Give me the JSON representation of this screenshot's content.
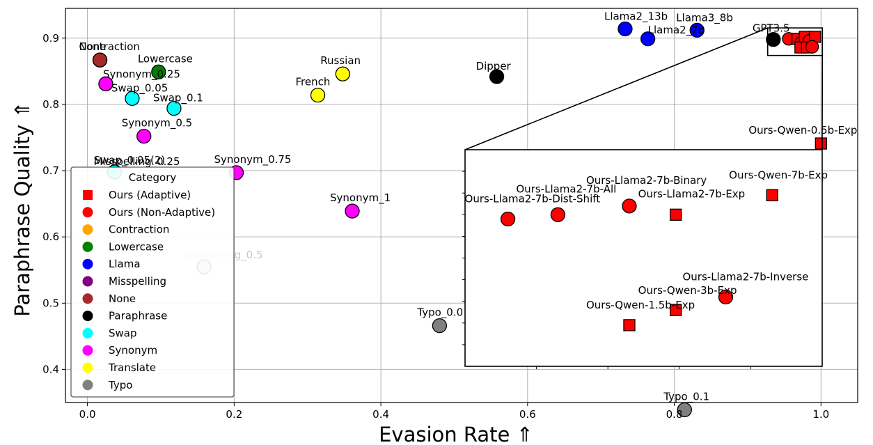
{
  "chart_data": {
    "type": "scatter",
    "title": "",
    "xlabel": "Evasion Rate ⇑",
    "ylabel": "Paraphrase Quality ⇑",
    "xlim": [
      -0.03,
      1.05
    ],
    "ylim": [
      0.35,
      0.945
    ],
    "xticks": [
      "0.0",
      "0.2",
      "0.4",
      "0.6",
      "0.8",
      "1.0"
    ],
    "xtick_values": [
      0.0,
      0.2,
      0.4,
      0.6,
      0.8,
      1.0
    ],
    "yticks": [
      "0.4",
      "0.5",
      "0.6",
      "0.7",
      "0.8",
      "0.9"
    ],
    "ytick_values": [
      0.4,
      0.5,
      0.6,
      0.7,
      0.8,
      0.9
    ],
    "grid": true,
    "legend": {
      "title": "Category",
      "placement": "lower-left",
      "entries": [
        {
          "label": "Ours (Adaptive)",
          "color": "#ff0000",
          "marker": "square"
        },
        {
          "label": "Ours (Non-Adaptive)",
          "color": "#ff0000",
          "marker": "circle"
        },
        {
          "label": "Contraction",
          "color": "#ffa500",
          "marker": "circle"
        },
        {
          "label": "Lowercase",
          "color": "#008000",
          "marker": "circle"
        },
        {
          "label": "Llama",
          "color": "#0000ff",
          "marker": "circle"
        },
        {
          "label": "Misspelling",
          "color": "#800080",
          "marker": "circle"
        },
        {
          "label": "None",
          "color": "#a52a2a",
          "marker": "circle"
        },
        {
          "label": "Paraphrase",
          "color": "#000000",
          "marker": "circle"
        },
        {
          "label": "Swap",
          "color": "#00ffff",
          "marker": "circle"
        },
        {
          "label": "Synonym",
          "color": "#ff00ff",
          "marker": "circle"
        },
        {
          "label": "Translate",
          "color": "#ffff00",
          "marker": "circle"
        },
        {
          "label": "Typo",
          "color": "#808080",
          "marker": "circle"
        }
      ]
    },
    "points": [
      {
        "label": "None",
        "x": 0.017,
        "y": 0.867,
        "color": "#a52a2a",
        "marker": "circle"
      },
      {
        "label": "Contraction",
        "x": 0.017,
        "y": 0.867,
        "color": "#a52a2a",
        "marker": "circle"
      },
      {
        "label": "Lowercase",
        "x": 0.097,
        "y": 0.849,
        "color": "#008000",
        "marker": "circle"
      },
      {
        "label": "Synonym_0.25",
        "x": 0.025,
        "y": 0.831,
        "color": "#ff00ff",
        "marker": "circle"
      },
      {
        "label": "Swap_0.05",
        "x": 0.061,
        "y": 0.809,
        "color": "#00ffff",
        "marker": "circle"
      },
      {
        "label": "Swap_0.1",
        "x": 0.118,
        "y": 0.794,
        "color": "#00ffff",
        "marker": "circle"
      },
      {
        "label": "Synonym_0.5",
        "x": 0.077,
        "y": 0.752,
        "color": "#ff00ff",
        "marker": "circle"
      },
      {
        "label": "Swap_0.05(2)",
        "x": 0.037,
        "y": 0.698,
        "color": "#00ffff",
        "marker": "circle"
      },
      {
        "label": "Misspelling_0.25",
        "x": 0.037,
        "y": 0.698,
        "color": "#00ffff",
        "marker": "circle"
      },
      {
        "label": "Synonym_0.75",
        "x": 0.203,
        "y": 0.697,
        "color": "#ff00ff",
        "marker": "circle"
      },
      {
        "label": "Misspelling_0.5",
        "x": 0.159,
        "y": 0.555,
        "color": "#e0c8e0",
        "marker": "circle"
      },
      {
        "label": "Russian",
        "x": 0.348,
        "y": 0.846,
        "color": "#ffff00",
        "marker": "circle"
      },
      {
        "label": "French",
        "x": 0.314,
        "y": 0.814,
        "color": "#ffff00",
        "marker": "circle"
      },
      {
        "label": "Synonym_1",
        "x": 0.361,
        "y": 0.639,
        "color": "#ff00ff",
        "marker": "circle"
      },
      {
        "label": "Typo_0.0",
        "x": 0.48,
        "y": 0.466,
        "color": "#808080",
        "marker": "circle"
      },
      {
        "label": "Dipper",
        "x": 0.558,
        "y": 0.842,
        "color": "#000000",
        "marker": "circle"
      },
      {
        "label": "Llama2_13b",
        "x": 0.733,
        "y": 0.914,
        "color": "#0000ff",
        "marker": "circle"
      },
      {
        "label": "Llama2_7b",
        "x": 0.764,
        "y": 0.899,
        "color": "#0000ff",
        "marker": "circle"
      },
      {
        "label": "Llama3_8b",
        "x": 0.831,
        "y": 0.912,
        "color": "#0000ff",
        "marker": "circle"
      },
      {
        "label": "GPT3.5",
        "x": 0.935,
        "y": 0.898,
        "color": "#000000",
        "marker": "circle"
      },
      {
        "label": "Typo_0.1",
        "x": 0.814,
        "y": 0.339,
        "color": "#808080",
        "marker": "circle"
      },
      {
        "label": "Ours-Qwen-0.5b-Exp",
        "x": 1.0,
        "y": 0.741,
        "color": "#ff0000",
        "marker": "square"
      }
    ],
    "cluster_points": [
      {
        "x": 0.956,
        "y": 0.899,
        "color": "#ff0000",
        "marker": "circle"
      },
      {
        "x": 0.968,
        "y": 0.899,
        "color": "#ff0000",
        "marker": "square"
      },
      {
        "x": 0.973,
        "y": 0.893,
        "color": "#ff0000",
        "marker": "circle"
      },
      {
        "x": 0.978,
        "y": 0.902,
        "color": "#ff0000",
        "marker": "square"
      },
      {
        "x": 0.984,
        "y": 0.896,
        "color": "#ff0000",
        "marker": "circle"
      },
      {
        "x": 0.992,
        "y": 0.902,
        "color": "#ff0000",
        "marker": "square"
      },
      {
        "x": 0.972,
        "y": 0.886,
        "color": "#ff0000",
        "marker": "square"
      },
      {
        "x": 0.981,
        "y": 0.886,
        "color": "#ff0000",
        "marker": "square"
      },
      {
        "x": 0.988,
        "y": 0.887,
        "color": "#ff0000",
        "marker": "circle"
      }
    ],
    "inset": {
      "source_box": {
        "xlim": [
          0.952,
          1.0
        ],
        "ylim": [
          0.876,
          0.906
        ]
      },
      "points": [
        {
          "label": "Ours-Llama2-7b-Dist-Shift",
          "u": 0.12,
          "v": 0.68,
          "color": "#ff0000",
          "marker": "circle"
        },
        {
          "label": "Ours-Llama2-7b-All",
          "u": 0.26,
          "v": 0.7,
          "color": "#ff0000",
          "marker": "circle"
        },
        {
          "label": "Ours-Llama2-7b-Binary",
          "u": 0.46,
          "v": 0.74,
          "color": "#ff0000",
          "marker": "circle"
        },
        {
          "label": "Ours-Llama2-7b-Exp",
          "u": 0.59,
          "v": 0.7,
          "color": "#ff0000",
          "marker": "square"
        },
        {
          "label": "Ours-Qwen-7b-Exp",
          "u": 0.86,
          "v": 0.79,
          "color": "#ff0000",
          "marker": "square"
        },
        {
          "label": "Ours-Llama2-7b-Inverse",
          "u": 0.73,
          "v": 0.32,
          "color": "#ff0000",
          "marker": "circle"
        },
        {
          "label": "Ours-Qwen-3b-Exp",
          "u": 0.59,
          "v": 0.26,
          "color": "#ff0000",
          "marker": "square"
        },
        {
          "label": "Ours-Qwen-1.5b-Exp",
          "u": 0.46,
          "v": 0.19,
          "color": "#ff0000",
          "marker": "square"
        }
      ]
    }
  }
}
